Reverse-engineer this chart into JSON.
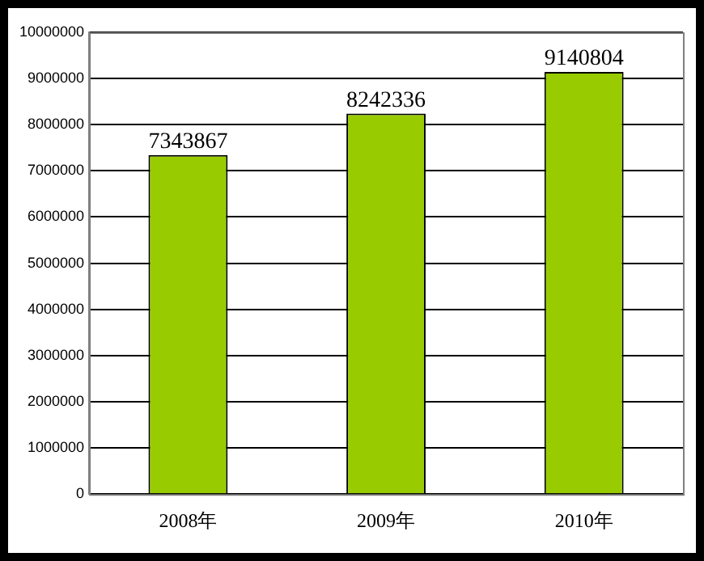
{
  "chart_data": {
    "type": "bar",
    "categories": [
      "2008年",
      "2009年",
      "2010年"
    ],
    "values": [
      7343867,
      8242336,
      9140804
    ],
    "color": "#99cc00",
    "ylim": [
      0,
      10000000
    ],
    "yticks": [
      0,
      1000000,
      2000000,
      3000000,
      4000000,
      5000000,
      6000000,
      7000000,
      8000000,
      9000000,
      10000000
    ],
    "grid": "y",
    "data_labels": true,
    "legend": false
  }
}
